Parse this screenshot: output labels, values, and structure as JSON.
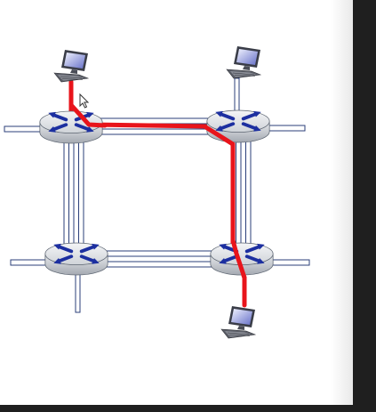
{
  "diagram": {
    "type": "network-topology",
    "routers": [
      {
        "id": "router-top-left"
      },
      {
        "id": "router-top-right"
      },
      {
        "id": "router-bottom-left"
      },
      {
        "id": "router-bottom-right"
      }
    ],
    "hosts": [
      {
        "id": "host-top-left",
        "attached_to": "router-top-left"
      },
      {
        "id": "host-top-right",
        "attached_to": "router-top-right"
      },
      {
        "id": "host-bottom-right",
        "attached_to": "router-bottom-right"
      }
    ],
    "links": [
      {
        "from": "router-top-left",
        "to": "router-top-right"
      },
      {
        "from": "router-bottom-left",
        "to": "router-bottom-right"
      },
      {
        "from": "router-top-left",
        "to": "router-bottom-left"
      },
      {
        "from": "router-top-right",
        "to": "router-bottom-right"
      }
    ],
    "highlighted_path": [
      "host-top-left",
      "router-top-left",
      "router-top-right",
      "router-bottom-right",
      "host-bottom-right"
    ]
  },
  "colors": {
    "path": "#e8141b",
    "link": "#2b3f7a",
    "router_body": "#c8ccd2",
    "router_arrows": "#1c2fa0",
    "window_frame": "#1f1f1f"
  },
  "icons": {
    "router": "router-icon",
    "host": "desktop-computer-icon",
    "cursor": "mouse-pointer-icon"
  }
}
